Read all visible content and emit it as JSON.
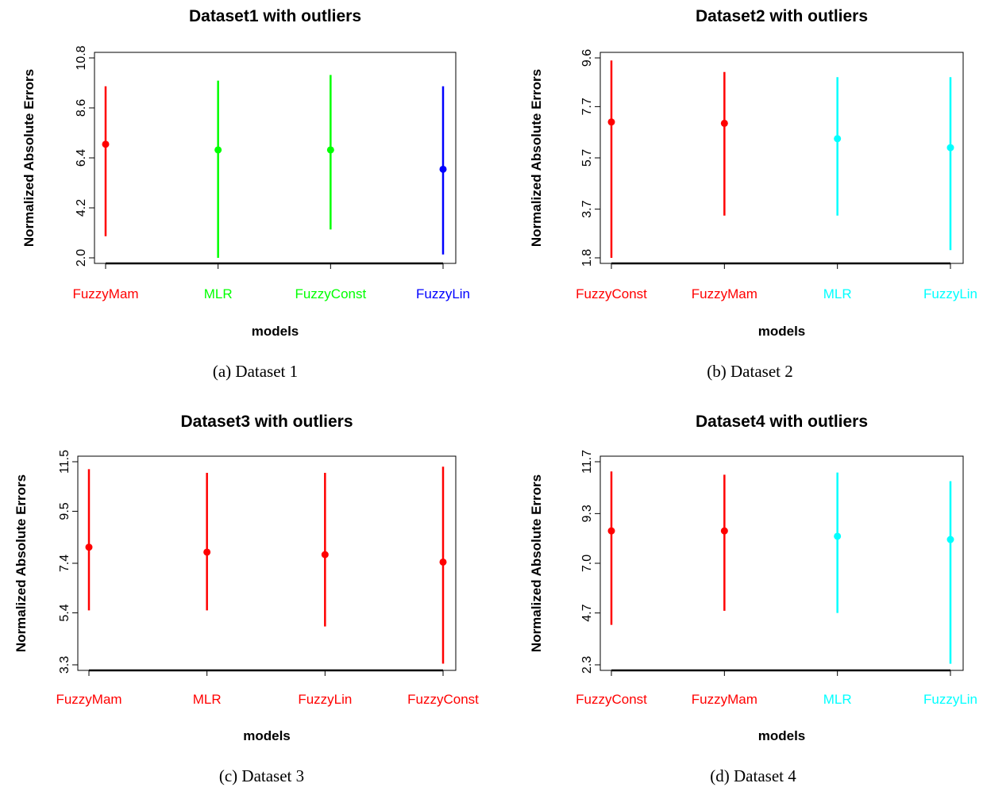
{
  "chart_data": [
    {
      "type": "errorbar",
      "title": "Dataset1 with outliers",
      "xlabel": "models",
      "ylabel": "Normalized Absolute Errors",
      "caption": "(a) Dataset 1",
      "yticks": [
        "2.0",
        "4.2",
        "6.4",
        "8.6",
        "10.8"
      ],
      "ylim": [
        2.0,
        10.8
      ],
      "grid": false,
      "series": [
        {
          "category": "FuzzyMam",
          "color": "#ff0000",
          "mean": 7.0,
          "lower": 2.95,
          "upper": 9.55
        },
        {
          "category": "MLR",
          "color": "#00ff00",
          "mean": 6.75,
          "lower": 2.0,
          "upper": 9.8
        },
        {
          "category": "FuzzyConst",
          "color": "#00ff00",
          "mean": 6.75,
          "lower": 3.25,
          "upper": 10.05
        },
        {
          "category": "FuzzyLin",
          "color": "#0000ff",
          "mean": 5.9,
          "lower": 2.15,
          "upper": 9.55
        }
      ]
    },
    {
      "type": "errorbar",
      "title": "Dataset2 with outliers",
      "xlabel": "models",
      "ylabel": "Normalized Absolute Errors",
      "caption": "(b) Dataset 2",
      "yticks": [
        "1.8",
        "3.7",
        "5.7",
        "7.7",
        "9.6"
      ],
      "ylim": [
        1.8,
        9.6
      ],
      "grid": false,
      "series": [
        {
          "category": "FuzzyConst",
          "color": "#ff0000",
          "mean": 7.1,
          "lower": 1.8,
          "upper": 9.5
        },
        {
          "category": "FuzzyMam",
          "color": "#ff0000",
          "mean": 7.05,
          "lower": 3.45,
          "upper": 9.05
        },
        {
          "category": "MLR",
          "color": "#00ffff",
          "mean": 6.45,
          "lower": 3.45,
          "upper": 8.85
        },
        {
          "category": "FuzzyLin",
          "color": "#00ffff",
          "mean": 6.1,
          "lower": 2.1,
          "upper": 8.85
        }
      ]
    },
    {
      "type": "errorbar",
      "title": "Dataset3 with outliers",
      "xlabel": "models",
      "ylabel": "Normalized Absolute Errors",
      "caption": "(c) Dataset 3",
      "yticks": [
        "3.3",
        "5.4",
        "7.4",
        "9.5",
        "11.5"
      ],
      "ylim": [
        3.3,
        11.5
      ],
      "grid": false,
      "series": [
        {
          "category": "FuzzyMam",
          "color": "#ff0000",
          "mean": 8.05,
          "lower": 5.5,
          "upper": 11.2
        },
        {
          "category": "MLR",
          "color": "#ff0000",
          "mean": 7.85,
          "lower": 5.5,
          "upper": 11.05
        },
        {
          "category": "FuzzyLin",
          "color": "#ff0000",
          "mean": 7.75,
          "lower": 4.85,
          "upper": 11.05
        },
        {
          "category": "FuzzyConst",
          "color": "#ff0000",
          "mean": 7.45,
          "lower": 3.35,
          "upper": 11.3
        }
      ]
    },
    {
      "type": "errorbar",
      "title": "Dataset4 with outliers",
      "xlabel": "models",
      "ylabel": "Normalized Absolute Errors",
      "caption": "(d) Dataset 4",
      "yticks": [
        "2.3",
        "4.7",
        "7.0",
        "9.3",
        "11.7"
      ],
      "ylim": [
        2.3,
        11.7
      ],
      "grid": false,
      "series": [
        {
          "category": "FuzzyConst",
          "color": "#ff0000",
          "mean": 8.5,
          "lower": 4.15,
          "upper": 11.25
        },
        {
          "category": "FuzzyMam",
          "color": "#ff0000",
          "mean": 8.5,
          "lower": 4.8,
          "upper": 11.1
        },
        {
          "category": "MLR",
          "color": "#00ffff",
          "mean": 8.25,
          "lower": 4.7,
          "upper": 11.2
        },
        {
          "category": "FuzzyLin",
          "color": "#00ffff",
          "mean": 8.1,
          "lower": 2.35,
          "upper": 10.8
        }
      ]
    }
  ]
}
